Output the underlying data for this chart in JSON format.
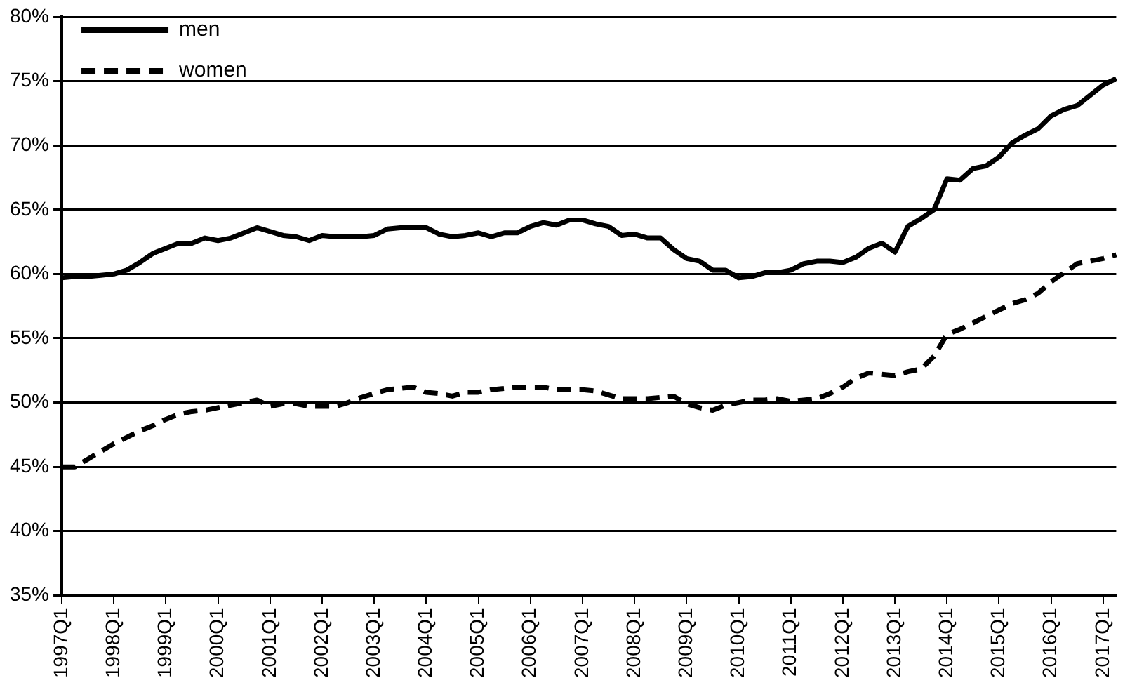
{
  "chart_data": {
    "type": "line",
    "categories": [
      "1997Q1",
      null,
      null,
      null,
      "1998Q1",
      null,
      null,
      null,
      "1999Q1",
      null,
      null,
      null,
      "2000Q1",
      null,
      null,
      null,
      "2001Q1",
      null,
      null,
      null,
      "2002Q1",
      null,
      null,
      null,
      "2003Q1",
      null,
      null,
      null,
      "2004Q1",
      null,
      null,
      null,
      "2005Q1",
      null,
      null,
      null,
      "2006Q1",
      null,
      null,
      null,
      "2007Q1",
      null,
      null,
      null,
      "2008Q1",
      null,
      null,
      null,
      "2009Q1",
      null,
      null,
      null,
      "2010Q1",
      null,
      null,
      null,
      "2011Q1",
      null,
      null,
      null,
      "2012Q1",
      null,
      null,
      null,
      "2013Q1",
      null,
      null,
      null,
      "2014Q1",
      null,
      null,
      null,
      "2015Q1",
      null,
      null,
      null,
      "2016Q1",
      null,
      null,
      null,
      "2017Q1",
      null
    ],
    "series": [
      {
        "name": "men",
        "color": "#000000",
        "line_style": "solid",
        "values": [
          59.7,
          59.8,
          59.8,
          59.9,
          60.0,
          60.3,
          60.9,
          61.6,
          62.0,
          62.4,
          62.4,
          62.8,
          62.6,
          62.8,
          63.2,
          63.6,
          63.3,
          63.0,
          62.9,
          62.6,
          63.0,
          62.9,
          62.9,
          62.9,
          63.0,
          63.5,
          63.6,
          63.6,
          63.6,
          63.1,
          62.9,
          63.0,
          63.2,
          62.9,
          63.2,
          63.2,
          63.7,
          64.0,
          63.8,
          64.2,
          64.2,
          63.9,
          63.7,
          63.0,
          63.1,
          62.8,
          62.8,
          61.9,
          61.2,
          61.0,
          60.3,
          60.3,
          59.7,
          59.8,
          60.1,
          60.1,
          60.3,
          60.8,
          61.0,
          61.0,
          60.9,
          61.3,
          62.0,
          62.4,
          61.7,
          63.7,
          64.3,
          65.0,
          67.4,
          67.3,
          68.2,
          68.4,
          69.1,
          70.2,
          70.8,
          71.3,
          72.3,
          72.8,
          73.1,
          73.9,
          74.7,
          75.2
        ]
      },
      {
        "name": "women",
        "color": "#000000",
        "line_style": "dashed",
        "values": [
          45.0,
          45.0,
          45.6,
          46.2,
          46.8,
          47.3,
          47.8,
          48.2,
          48.7,
          49.1,
          49.3,
          49.4,
          49.6,
          49.8,
          50.0,
          50.2,
          49.7,
          49.9,
          49.9,
          49.7,
          49.7,
          49.7,
          50.0,
          50.4,
          50.7,
          51.0,
          51.1,
          51.2,
          50.8,
          50.7,
          50.5,
          50.8,
          50.8,
          51.0,
          51.1,
          51.2,
          51.2,
          51.2,
          51.0,
          51.0,
          51.0,
          50.9,
          50.6,
          50.3,
          50.3,
          50.3,
          50.4,
          50.5,
          49.9,
          49.6,
          49.4,
          49.8,
          50.0,
          50.2,
          50.2,
          50.3,
          50.1,
          50.2,
          50.3,
          50.7,
          51.2,
          51.9,
          52.3,
          52.2,
          52.1,
          52.4,
          52.6,
          53.6,
          55.3,
          55.7,
          56.2,
          56.7,
          57.2,
          57.7,
          58.0,
          58.5,
          59.4,
          60.1,
          60.8,
          61.0,
          61.2,
          61.5
        ]
      }
    ],
    "ylim": [
      35,
      80
    ],
    "yticks": [
      {
        "value": 35,
        "label": "35%"
      },
      {
        "value": 40,
        "label": "40%"
      },
      {
        "value": 45,
        "label": "45%"
      },
      {
        "value": 50,
        "label": "50%"
      },
      {
        "value": 55,
        "label": "55%"
      },
      {
        "value": 60,
        "label": "60%"
      },
      {
        "value": 65,
        "label": "65%"
      },
      {
        "value": 70,
        "label": "70%"
      },
      {
        "value": 75,
        "label": "75%"
      },
      {
        "value": 80,
        "label": "80%"
      }
    ],
    "grid": "y",
    "legend": "top left",
    "marker": "none"
  }
}
